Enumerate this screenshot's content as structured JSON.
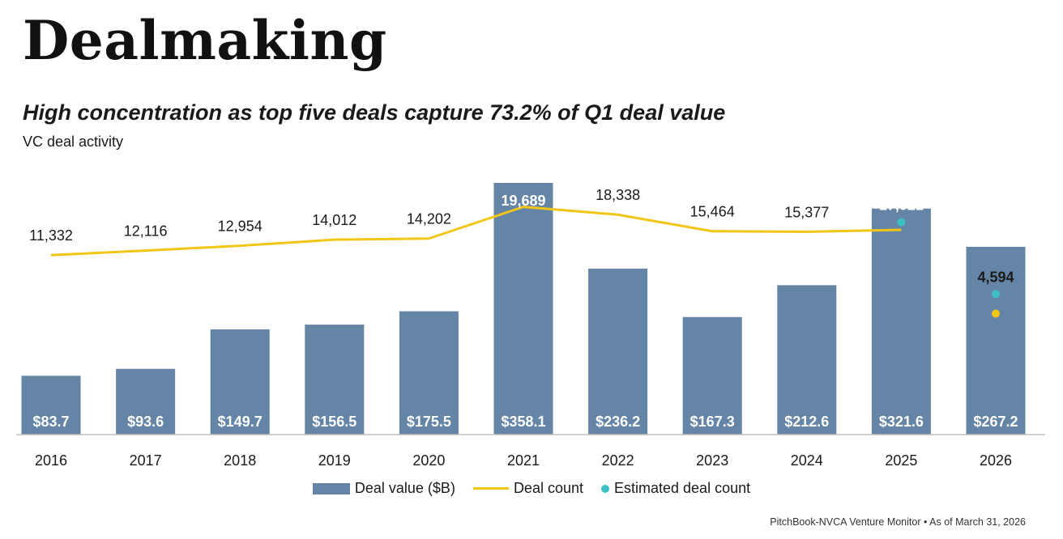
{
  "header": {
    "title": "Dealmaking",
    "subtitle": "High concentration as top five deals capture 73.2% of Q1 deal value",
    "caption": "VC deal activity"
  },
  "footer": {
    "source": "PitchBook-NVCA Venture Monitor",
    "separator": "•",
    "as_of": "As of March 31, 2026"
  },
  "colors": {
    "bar": "#6585A7",
    "line": "#F2C618",
    "estimate": "#3CC0C4",
    "axis": "#bfbfbf"
  },
  "chart_data": {
    "type": "bar",
    "title": "VC deal activity",
    "categories": [
      "2016",
      "2017",
      "2018",
      "2019",
      "2020",
      "2021",
      "2022",
      "2023",
      "2024",
      "2025",
      "2026"
    ],
    "legend_position": "bottom-center",
    "grid": false,
    "series": [
      {
        "name": "Deal value ($B)",
        "kind": "bar",
        "axis": "left",
        "values": [
          83.7,
          93.6,
          149.7,
          156.5,
          175.5,
          358.1,
          236.2,
          167.3,
          212.6,
          321.6,
          267.2
        ],
        "labels": [
          "$83.7",
          "$93.6",
          "$149.7",
          "$156.5",
          "$175.5",
          "$358.1",
          "$236.2",
          "$167.3",
          "$212.6",
          "$321.6",
          "$267.2"
        ]
      },
      {
        "name": "Deal count",
        "kind": "line",
        "axis": "right",
        "values": [
          11332,
          12116,
          12954,
          14012,
          14202,
          19689,
          18338,
          15464,
          15377,
          15700,
          1200
        ],
        "labels": [
          "11,332",
          "12,116",
          "12,954",
          "14,012",
          "14,202",
          "19,689",
          "18,338",
          "15,464",
          "15,377",
          "",
          ""
        ]
      },
      {
        "name": "Estimated deal count",
        "kind": "point",
        "axis": "right",
        "values": [
          null,
          null,
          null,
          null,
          null,
          null,
          null,
          null,
          null,
          17021,
          4594
        ],
        "labels": [
          "",
          "",
          "",
          "",
          "",
          "",
          "",
          "",
          "",
          "17,021",
          "4,594"
        ]
      }
    ],
    "ylim_left": [
      0,
      380
    ],
    "ylim_right": [
      -19750,
      26500
    ]
  }
}
